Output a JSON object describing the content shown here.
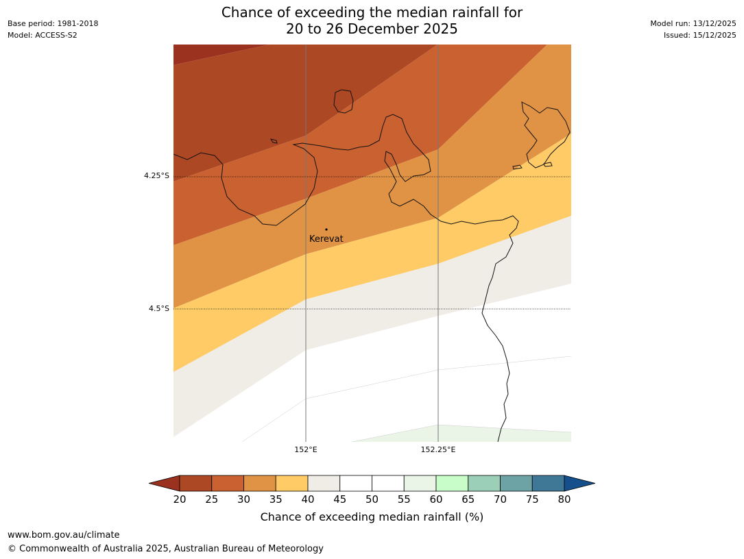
{
  "header": {
    "title_line1": "Chance of exceeding the median rainfall for",
    "title_line2": "20 to 26 December 2025",
    "base_period": "Base period: 1981-2018",
    "model": "Model: ACCESS-S2",
    "model_run": "Model run: 13/12/2025",
    "issued": "Issued: 15/12/2025"
  },
  "map": {
    "place_label": "Kerevat",
    "lat_labels": [
      "4.25°S",
      "4.5°S"
    ],
    "lon_labels": [
      "152°E",
      "152.25°E"
    ]
  },
  "colorbar": {
    "label": "Chance of exceeding median rainfall (%)",
    "ticks": [
      "20",
      "25",
      "30",
      "35",
      "40",
      "45",
      "50",
      "55",
      "60",
      "65",
      "70",
      "75",
      "80"
    ],
    "colors": {
      "below20": "#9b3220",
      "c20": "#ad4825",
      "c25": "#c96131",
      "c30": "#e09345",
      "c35": "#fecb67",
      "c40": "#f0ece6",
      "c45": "#ffffff",
      "c50": "#ffffff",
      "c55": "#eaf5e8",
      "c60": "#c8fcc8",
      "c65": "#9ccfb8",
      "c70": "#6da3a5",
      "c75": "#3f7896",
      "above80": "#16508c"
    }
  },
  "footer": {
    "url": "www.bom.gov.au/climate",
    "copyright": "© Commonwealth of Australia 2025, Australian Bureau of Meteorology"
  }
}
